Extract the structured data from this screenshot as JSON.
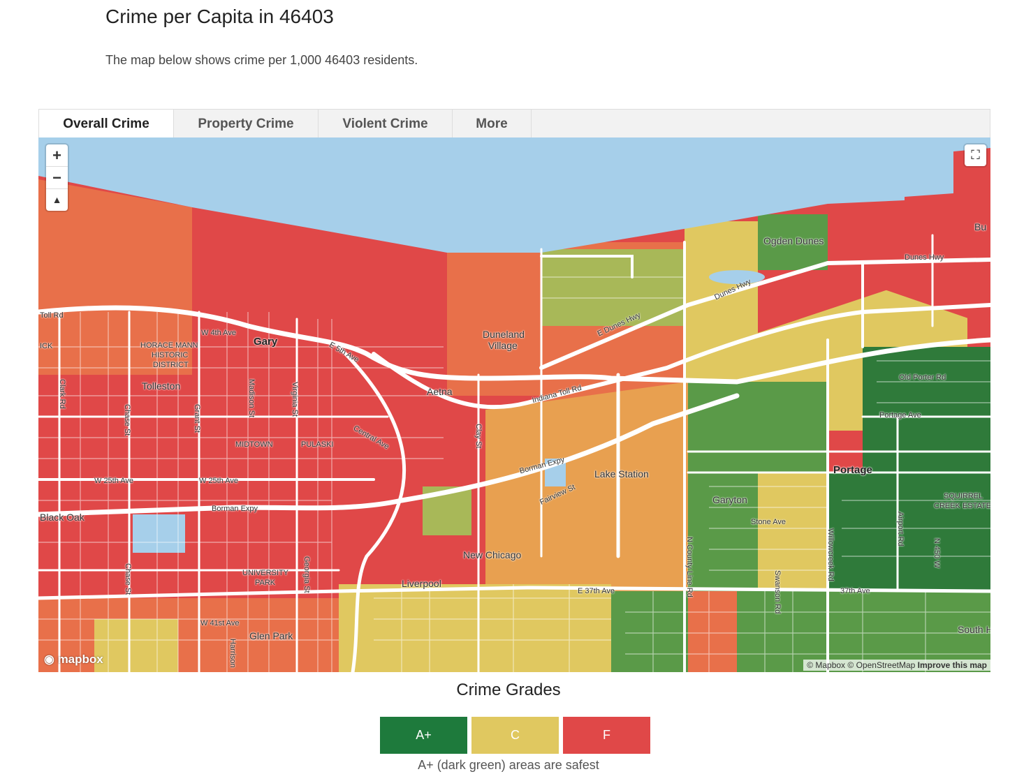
{
  "header": {
    "title": "Crime per Capita in 46403",
    "subtitle": "The map below shows crime per 1,000 46403 residents."
  },
  "tabs": [
    {
      "label": "Overall Crime",
      "active": true
    },
    {
      "label": "Property Crime",
      "active": false
    },
    {
      "label": "Violent Crime",
      "active": false
    },
    {
      "label": "More",
      "active": false
    }
  ],
  "map": {
    "controls": {
      "zoom_in": "+",
      "zoom_out": "−",
      "compass": "▲",
      "fullscreen": "⛶"
    },
    "logo": "mapbox",
    "attribution": {
      "mapbox": "© Mapbox",
      "osm": "© OpenStreetMap",
      "improve": "Improve this map"
    },
    "colors": {
      "water": "#a6cfea",
      "grade_f": "#e04848",
      "grade_d": "#e8704a",
      "grade_dplus": "#e8a050",
      "grade_c": "#e0c860",
      "grade_b": "#a8b858",
      "grade_a": "#5a9a48",
      "grade_aplus": "#2f7a3a",
      "road": "#ffffff"
    },
    "labels": {
      "gary": "Gary",
      "horace_mann": "HORACE MANN",
      "historic": "HISTORIC",
      "district": "DISTRICT",
      "tolleston": "Tolleston",
      "midtown": "MIDTOWN",
      "pulaski": "PULASKI",
      "black_oak": "Black Oak",
      "university": "UNIVERSITY",
      "park": "PARK",
      "glen_park": "Glen Park",
      "aetna": "Aetna",
      "duneland": "Duneland",
      "village": "Village",
      "ogden_dunes": "Ogden Dunes",
      "lake_station": "Lake Station",
      "new_chicago": "New Chicago",
      "liverpool": "Liverpool",
      "garyton": "Garyton",
      "portage": "Portage",
      "squirrel": "SQUIRREL",
      "creek_estates": "CREEK ESTATE",
      "south_h": "South H",
      "bu": "Bu",
      "toll_rd": "Toll Rd",
      "ick": "ICK",
      "w4th": "W 4th Ave",
      "e5th": "E 5th Ave",
      "clark": "Clark Rd",
      "chase": "Chase St",
      "chase2": "Chase St",
      "grant": "Grant St",
      "madison": "Madison St",
      "virginia": "Virginia St",
      "central": "Central Ave",
      "w25th": "W 25th Ave",
      "w25th2": "W 25th Ave",
      "borman": "Borman Expy",
      "borman2": "Borman Expy",
      "georgia": "Georgia St",
      "w41st": "W 41st Ave",
      "harrison": "Harrison",
      "clay": "Clay St",
      "indiana_toll": "Indiana Toll Rd",
      "e_dunes": "E Dunes Hwy",
      "dunes_hwy": "Dunes Hwy",
      "dunes_hwy2": "Dunes Hwy",
      "fairview": "Fairview St",
      "e37th": "E 37th Ave",
      "n_county": "N County Line Rd",
      "stone": "Stone Ave",
      "swanson": "Swanson Rd",
      "willowcreek": "Willowcreek Rd",
      "airport": "Airport Rd",
      "n450w": "N 450 W",
      "old_porter": "Old Porter Rd",
      "portage_ave": "Portage Ave",
      "37th": "37th Ave"
    }
  },
  "legend": {
    "title": "Crime Grades",
    "items": [
      {
        "label": "A+",
        "color": "#1e7a3c"
      },
      {
        "label": "C",
        "color": "#e0c860"
      },
      {
        "label": "F",
        "color": "#e04848"
      }
    ],
    "note": "A+ (dark green) areas are safest"
  }
}
